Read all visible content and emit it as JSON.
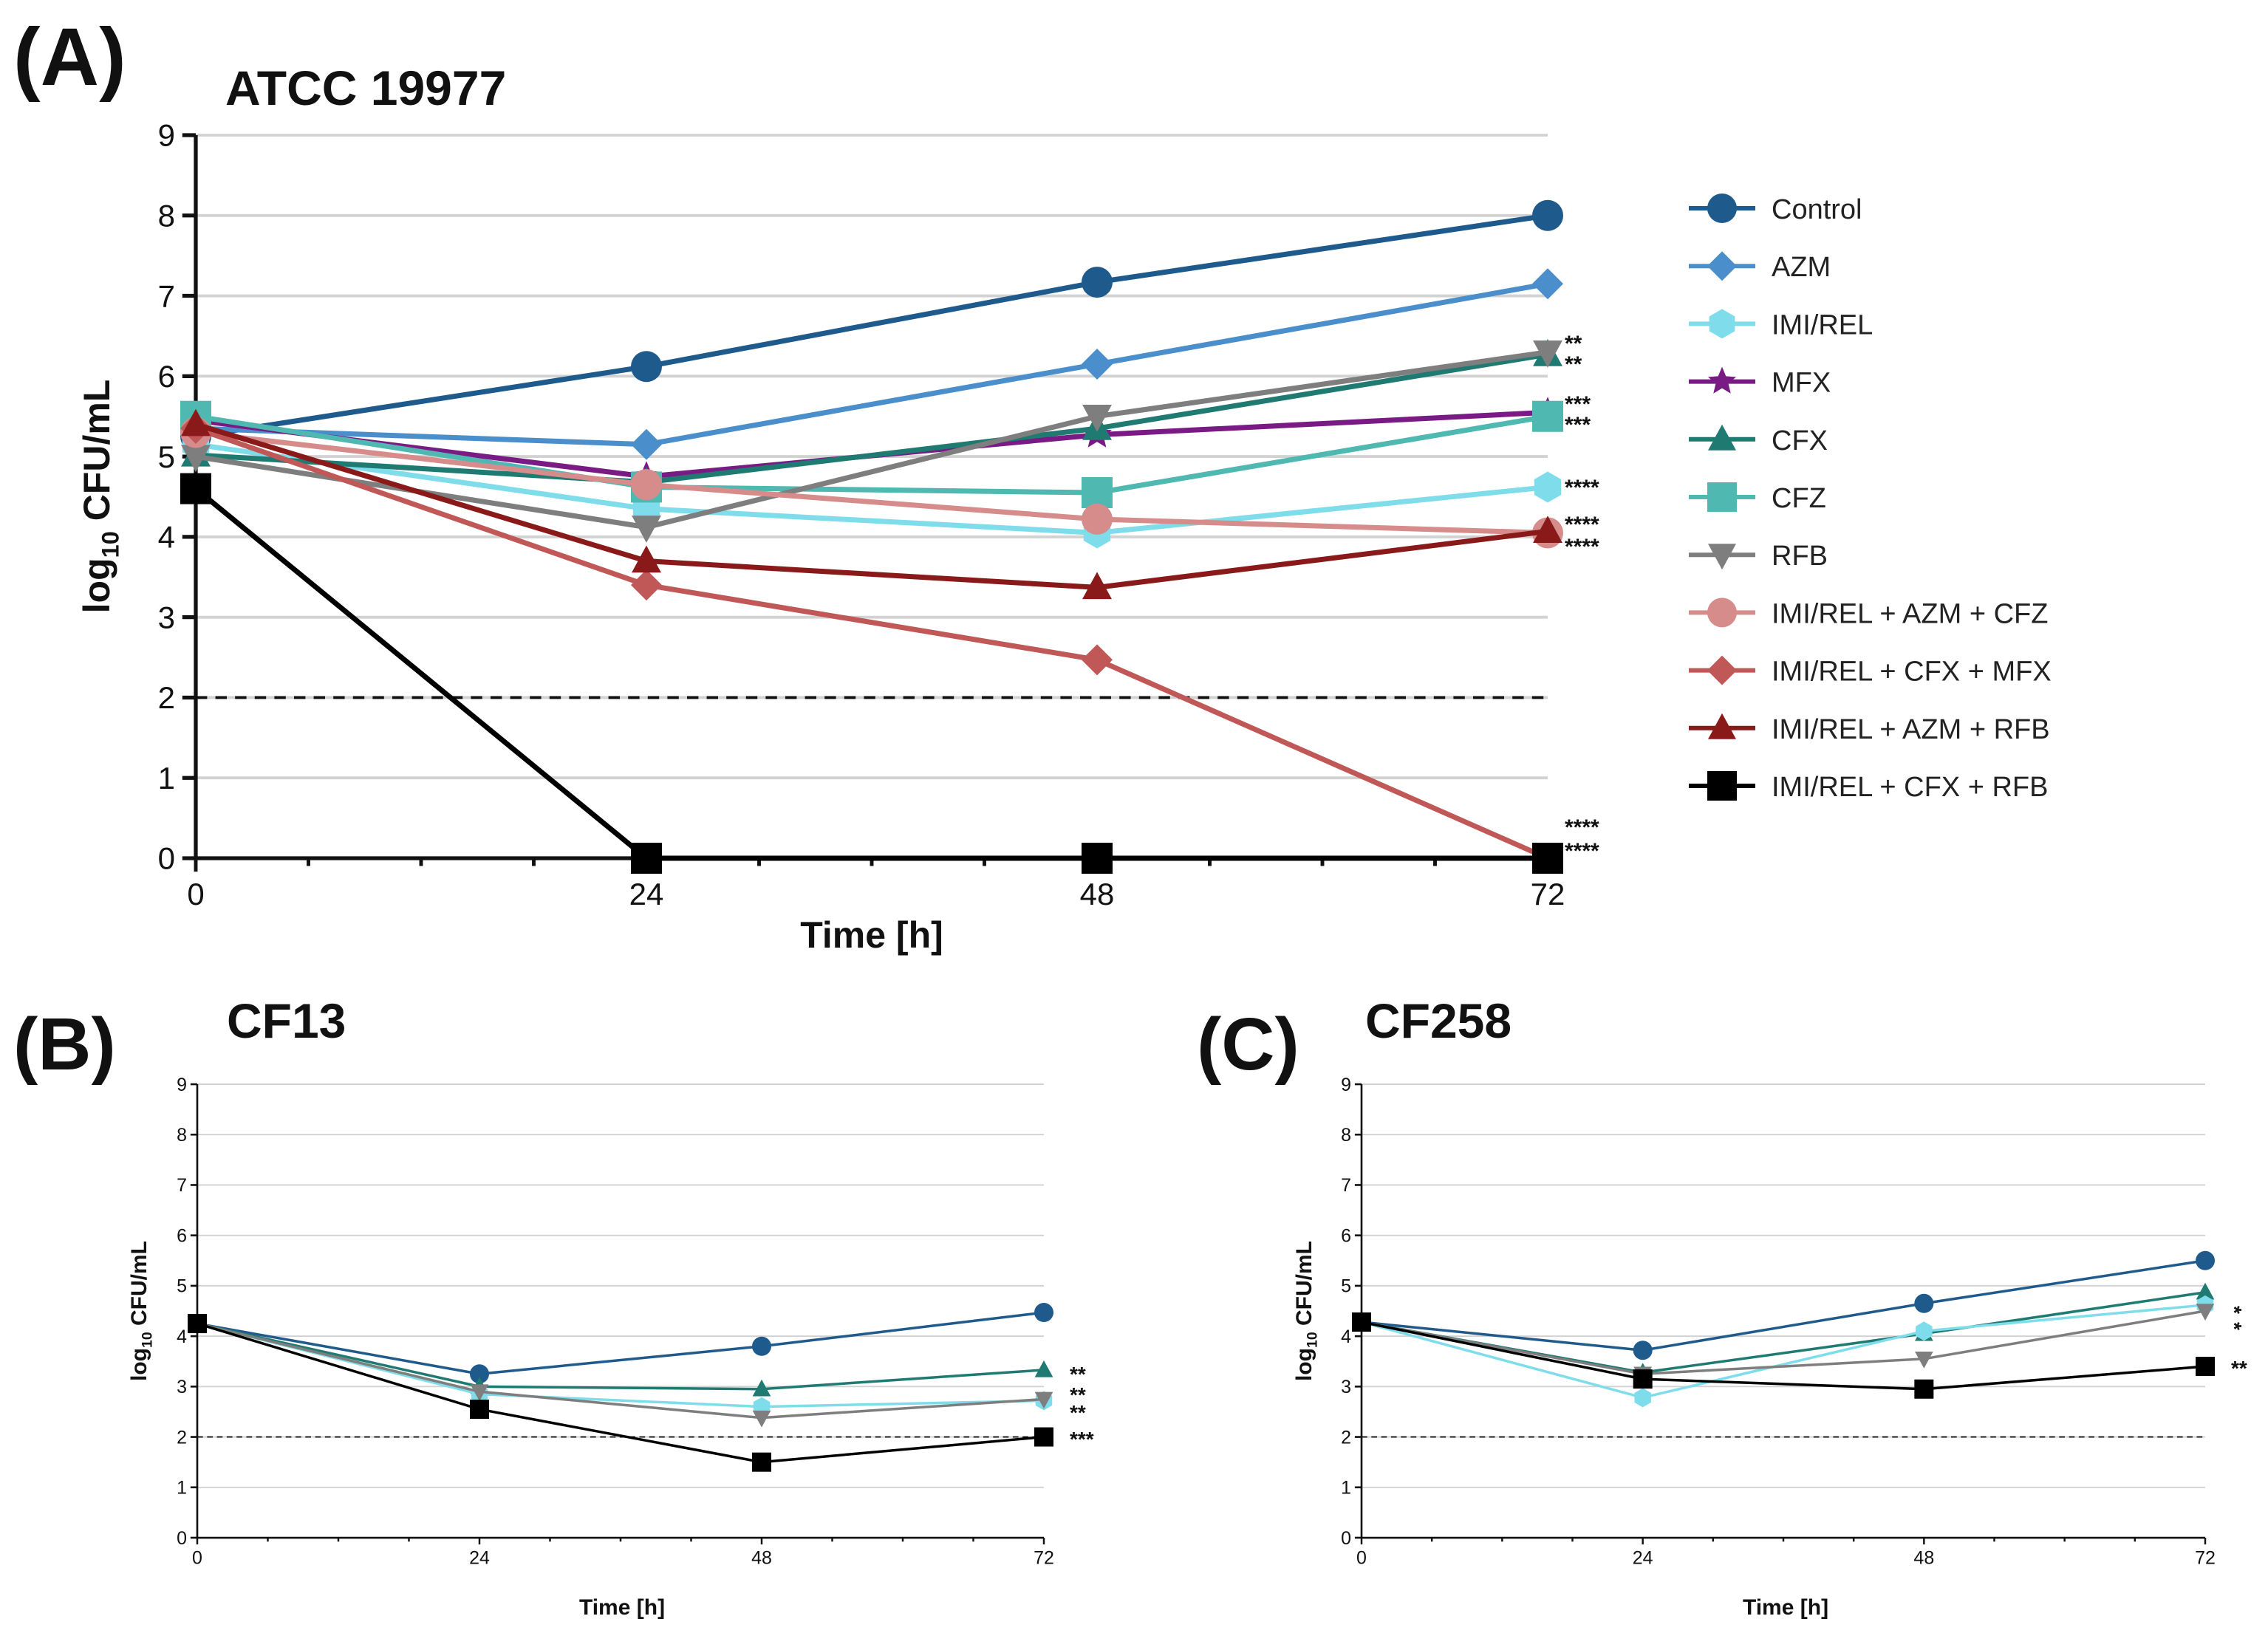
{
  "chart_data": [
    {
      "type": "line",
      "panel_label": "(A)",
      "title": "ATCC 19977",
      "xlabel": "Time [h]",
      "ylabel_main": "log",
      "ylabel_sub": "10",
      "ylabel_rest": " CFU/mL",
      "x": [
        0,
        24,
        48,
        72
      ],
      "x_ticks": [
        "0",
        "24",
        "48",
        "72"
      ],
      "y_ticks": [
        "0",
        "1",
        "2",
        "3",
        "4",
        "5",
        "6",
        "7",
        "8",
        "9"
      ],
      "xlim": [
        0,
        72
      ],
      "ylim": [
        0,
        9
      ],
      "detection_limit": 2,
      "grid": true,
      "legend_position": "right",
      "series": [
        {
          "name": "Control",
          "color": "#1F5A8C",
          "marker": "circle",
          "values": [
            5.25,
            6.12,
            7.17,
            8.0
          ]
        },
        {
          "name": "AZM",
          "color": "#4A8FCB",
          "marker": "diamond",
          "values": [
            5.35,
            5.15,
            6.15,
            7.15
          ]
        },
        {
          "name": "IMI/REL",
          "color": "#7FDDEB",
          "marker": "hexagon",
          "values": [
            5.15,
            4.35,
            4.05,
            4.62
          ]
        },
        {
          "name": "MFX",
          "color": "#7A1A84",
          "marker": "star",
          "values": [
            5.45,
            4.75,
            5.27,
            5.55
          ]
        },
        {
          "name": "CFX",
          "color": "#1F7A72",
          "marker": "triangle-up",
          "values": [
            5.02,
            4.68,
            5.35,
            6.27
          ]
        },
        {
          "name": "CFZ",
          "color": "#4FB8B0",
          "marker": "square",
          "values": [
            5.5,
            4.62,
            4.55,
            5.5
          ]
        },
        {
          "name": "RFB",
          "color": "#7E7E7E",
          "marker": "triangle-down",
          "values": [
            5.0,
            4.12,
            5.5,
            6.3
          ]
        },
        {
          "name": "IMI/REL + AZM + CFZ",
          "color": "#D78C8C",
          "marker": "circle",
          "values": [
            5.3,
            4.65,
            4.22,
            4.05
          ]
        },
        {
          "name": "IMI/REL + CFX + MFX",
          "color": "#C05858",
          "marker": "diamond",
          "values": [
            5.35,
            3.4,
            2.47,
            0.0
          ]
        },
        {
          "name": "IMI/REL + AZM + RFB",
          "color": "#8A1A1A",
          "marker": "triangle-up",
          "values": [
            5.4,
            3.7,
            3.37,
            4.07
          ]
        },
        {
          "name": "IMI/REL + CFX + RFB",
          "color": "#000000",
          "marker": "square",
          "values": [
            4.6,
            0.0,
            0.0,
            0.0
          ]
        }
      ],
      "annotations": [
        "**",
        "**",
        "***",
        "***",
        "****",
        "****",
        "****",
        "****",
        "****"
      ]
    },
    {
      "type": "line",
      "panel_label": "(B)",
      "title": "CF13",
      "xlabel": "Time [h]",
      "ylabel_main": "log",
      "ylabel_sub": "10",
      "ylabel_rest": " CFU/mL",
      "x": [
        0,
        24,
        48,
        72
      ],
      "x_ticks": [
        "0",
        "24",
        "48",
        "72"
      ],
      "y_ticks": [
        "0",
        "1",
        "2",
        "3",
        "4",
        "5",
        "6",
        "7",
        "8",
        "9"
      ],
      "xlim": [
        0,
        72
      ],
      "ylim": [
        0,
        9
      ],
      "detection_limit": 2,
      "grid": true,
      "series": [
        {
          "name": "Control",
          "color": "#1F5A8C",
          "marker": "circle",
          "values": [
            4.25,
            3.25,
            3.8,
            4.47
          ]
        },
        {
          "name": "CFX",
          "color": "#1F7A72",
          "marker": "triangle-up",
          "values": [
            4.25,
            3.0,
            2.95,
            3.33
          ]
        },
        {
          "name": "IMI/REL",
          "color": "#7FDDEB",
          "marker": "hexagon",
          "values": [
            4.25,
            2.85,
            2.6,
            2.72
          ]
        },
        {
          "name": "RFB",
          "color": "#7E7E7E",
          "marker": "triangle-down",
          "values": [
            4.25,
            2.9,
            2.38,
            2.75
          ]
        },
        {
          "name": "IMI/REL + CFX + RFB",
          "color": "#000000",
          "marker": "square",
          "values": [
            4.25,
            2.55,
            1.5,
            2.0
          ]
        }
      ],
      "annotations": [
        "**",
        "**",
        "**",
        "***"
      ]
    },
    {
      "type": "line",
      "panel_label": "(C)",
      "title": "CF258",
      "xlabel": "Time [h]",
      "ylabel_main": "log",
      "ylabel_sub": "10",
      "ylabel_rest": " CFU/mL",
      "x": [
        0,
        24,
        48,
        72
      ],
      "x_ticks": [
        "0",
        "24",
        "48",
        "72"
      ],
      "y_ticks": [
        "0",
        "1",
        "2",
        "3",
        "4",
        "5",
        "6",
        "7",
        "8",
        "9"
      ],
      "xlim": [
        0,
        72
      ],
      "ylim": [
        0,
        9
      ],
      "detection_limit": 2,
      "grid": true,
      "series": [
        {
          "name": "Control",
          "color": "#1F5A8C",
          "marker": "circle",
          "values": [
            4.28,
            3.72,
            4.65,
            5.5
          ]
        },
        {
          "name": "CFX",
          "color": "#1F7A72",
          "marker": "triangle-up",
          "values": [
            4.28,
            3.28,
            4.05,
            4.87
          ]
        },
        {
          "name": "IMI/REL",
          "color": "#7FDDEB",
          "marker": "hexagon",
          "values": [
            4.28,
            2.78,
            4.1,
            4.62
          ]
        },
        {
          "name": "RFB",
          "color": "#7E7E7E",
          "marker": "triangle-down",
          "values": [
            4.28,
            3.25,
            3.55,
            4.5
          ]
        },
        {
          "name": "IMI/REL + CFX + RFB",
          "color": "#000000",
          "marker": "square",
          "values": [
            4.28,
            3.15,
            2.95,
            3.4
          ]
        }
      ],
      "annotations": [
        "*",
        "*",
        "**"
      ]
    }
  ]
}
